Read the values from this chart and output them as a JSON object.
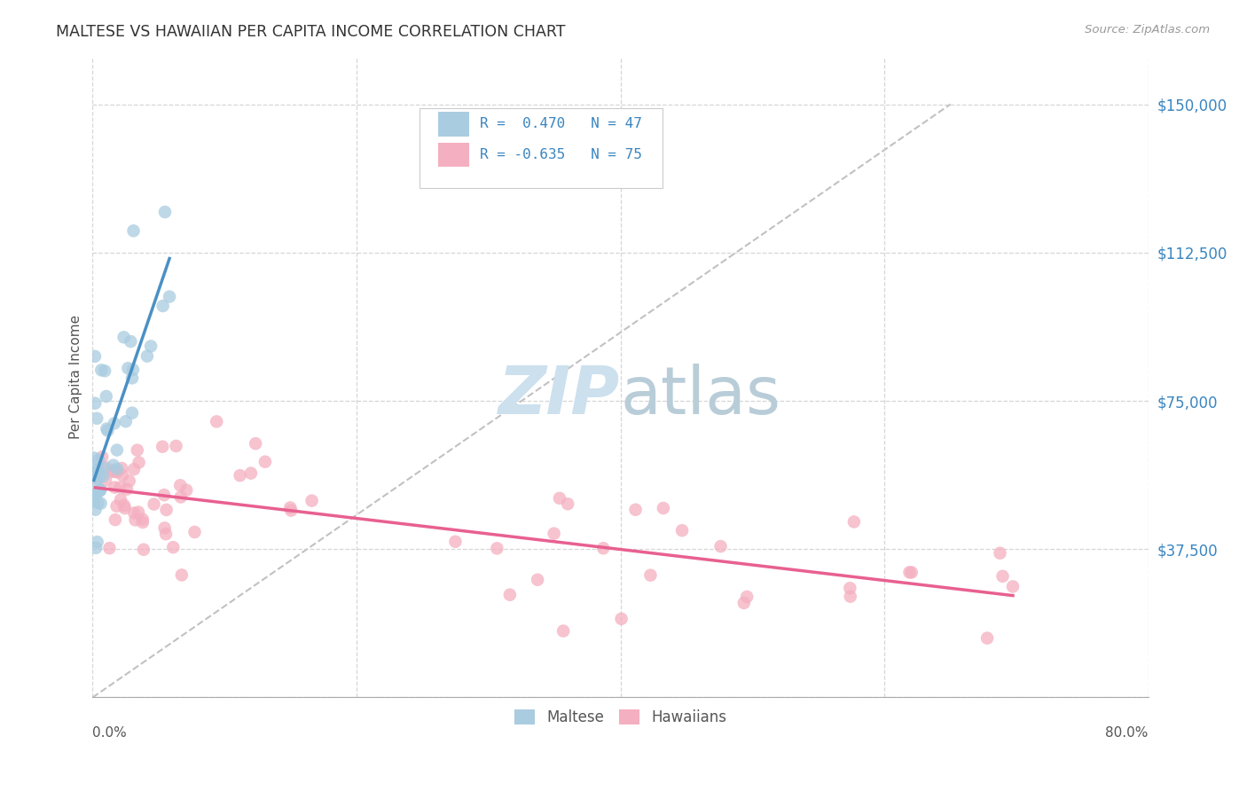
{
  "title": "MALTESE VS HAWAIIAN PER CAPITA INCOME CORRELATION CHART",
  "source": "Source: ZipAtlas.com",
  "ylabel": "Per Capita Income",
  "yticks": [
    0,
    37500,
    75000,
    112500,
    150000
  ],
  "xmin": 0.0,
  "xmax": 0.8,
  "ymin": 0,
  "ymax": 162000,
  "maltese_R": 0.47,
  "maltese_N": 47,
  "hawaiian_R": -0.635,
  "hawaiian_N": 75,
  "blue_scatter_color": "#a8cce0",
  "pink_scatter_color": "#f4afc0",
  "blue_line_color": "#4a90c4",
  "pink_line_color": "#e86090",
  "ref_line_color": "#bbbbbb",
  "legend_box_color": "#dddddd"
}
